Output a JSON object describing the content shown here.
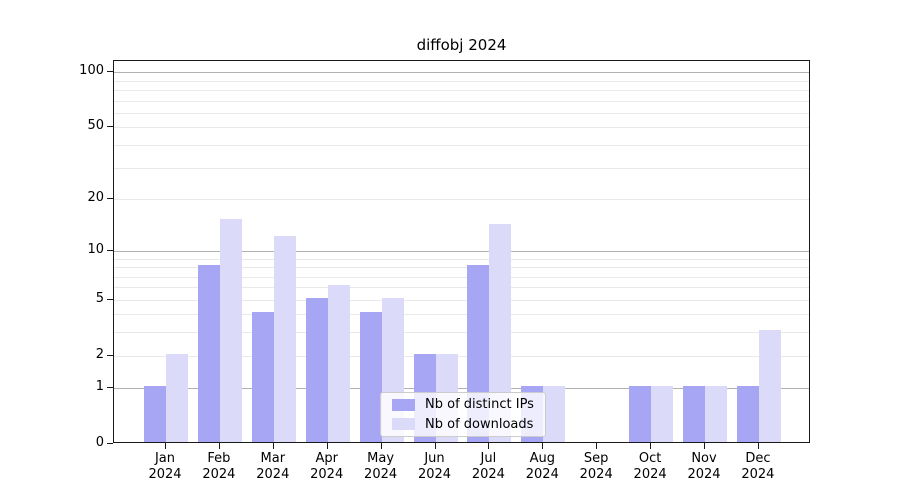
{
  "chart_data": {
    "type": "bar",
    "title": "diffobj 2024",
    "categories": [
      "Jan 2024",
      "Feb 2024",
      "Mar 2024",
      "Apr 2024",
      "May 2024",
      "Jun 2024",
      "Jul 2024",
      "Aug 2024",
      "Sep 2024",
      "Oct 2024",
      "Nov 2024",
      "Dec 2024"
    ],
    "series": [
      {
        "name": "Nb of distinct IPs",
        "color": "#a6a6f4",
        "values": [
          1,
          8,
          4,
          5,
          4,
          2,
          8,
          1,
          0,
          1,
          1,
          1
        ]
      },
      {
        "name": "Nb of downloads",
        "color": "#dbdbf9",
        "values": [
          2,
          15,
          12,
          6,
          5,
          2,
          14,
          1,
          0,
          1,
          1,
          3
        ]
      }
    ],
    "xlabel": "",
    "ylabel": "",
    "y_scale": "log1p",
    "y_ticks": [
      0,
      1,
      2,
      5,
      10,
      20,
      50,
      100
    ],
    "ylim": [
      0,
      115
    ],
    "major_gridlines": [
      1,
      10,
      100
    ],
    "minor_gridlines": [
      2,
      3,
      4,
      5,
      6,
      7,
      8,
      9,
      20,
      30,
      40,
      50,
      60,
      70,
      80,
      90
    ],
    "grid": true,
    "legend_position": "bottom-center"
  }
}
